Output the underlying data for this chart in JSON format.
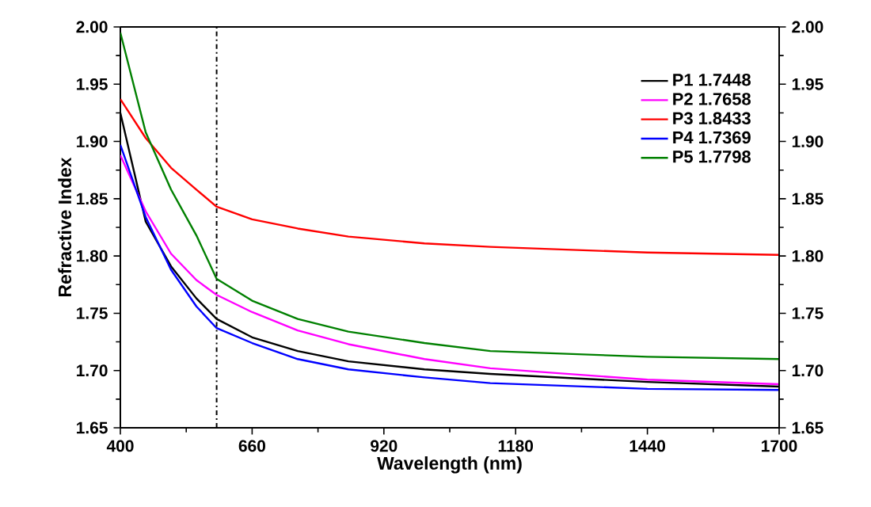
{
  "chart_data": {
    "type": "line",
    "xlabel": "Wavelength (nm)",
    "ylabel": "Refractive Index",
    "x": [
      400,
      450,
      500,
      550,
      590,
      660,
      750,
      850,
      1000,
      1130,
      1440,
      1700
    ],
    "series": [
      {
        "name": "P1  1.7448",
        "color": "#000000",
        "values": [
          1.925,
          1.83,
          1.791,
          1.763,
          1.745,
          1.729,
          1.717,
          1.708,
          1.701,
          1.697,
          1.69,
          1.686
        ]
      },
      {
        "name": "P2  1.7658",
        "color": "#ff00ff",
        "values": [
          1.888,
          1.839,
          1.802,
          1.779,
          1.766,
          1.751,
          1.735,
          1.723,
          1.71,
          1.702,
          1.692,
          1.688
        ]
      },
      {
        "name": "P3  1.8433",
        "color": "#ff0000",
        "values": [
          1.937,
          1.903,
          1.877,
          1.858,
          1.843,
          1.832,
          1.824,
          1.817,
          1.811,
          1.808,
          1.803,
          1.801
        ]
      },
      {
        "name": "P4  1.7369",
        "color": "#0000ff",
        "values": [
          1.897,
          1.834,
          1.788,
          1.756,
          1.737,
          1.724,
          1.71,
          1.701,
          1.694,
          1.689,
          1.684,
          1.683
        ]
      },
      {
        "name": "P5  1.7798",
        "color": "#008000",
        "values": [
          1.995,
          1.908,
          1.858,
          1.818,
          1.78,
          1.761,
          1.745,
          1.734,
          1.724,
          1.717,
          1.712,
          1.71
        ]
      }
    ],
    "xlim": [
      400,
      1700
    ],
    "xticks": [
      400,
      660,
      920,
      1180,
      1440,
      1700
    ],
    "ylim": [
      1.65,
      2.0
    ],
    "yticks": [
      {
        "value": 1.65,
        "label": "1.65"
      },
      {
        "value": 1.7,
        "label": "1.70"
      },
      {
        "value": 1.75,
        "label": "1.75"
      },
      {
        "value": 1.8,
        "label": "1.80"
      },
      {
        "value": 1.85,
        "label": "1.85"
      },
      {
        "value": 1.9,
        "label": "1.90"
      },
      {
        "value": 1.95,
        "label": "1.95"
      },
      {
        "value": 2.0,
        "label": "2.00"
      }
    ],
    "y2lim": [
      1.65,
      2.0
    ],
    "y2ticks": [
      {
        "value": 1.65,
        "label": "1.65"
      },
      {
        "value": 1.7,
        "label": "1.70"
      },
      {
        "value": 1.75,
        "label": "1.75"
      },
      {
        "value": 1.8,
        "label": "1.80"
      },
      {
        "value": 1.85,
        "label": "1.85"
      },
      {
        "value": 1.9,
        "label": "1.90"
      },
      {
        "value": 1.95,
        "label": "1.95"
      },
      {
        "value": 2.0,
        "label": "2.00"
      }
    ],
    "ref_lines": [
      {
        "axis": "x",
        "value": 590,
        "color": "#000000",
        "line_style": "dashed"
      }
    ],
    "legend": "top right"
  }
}
